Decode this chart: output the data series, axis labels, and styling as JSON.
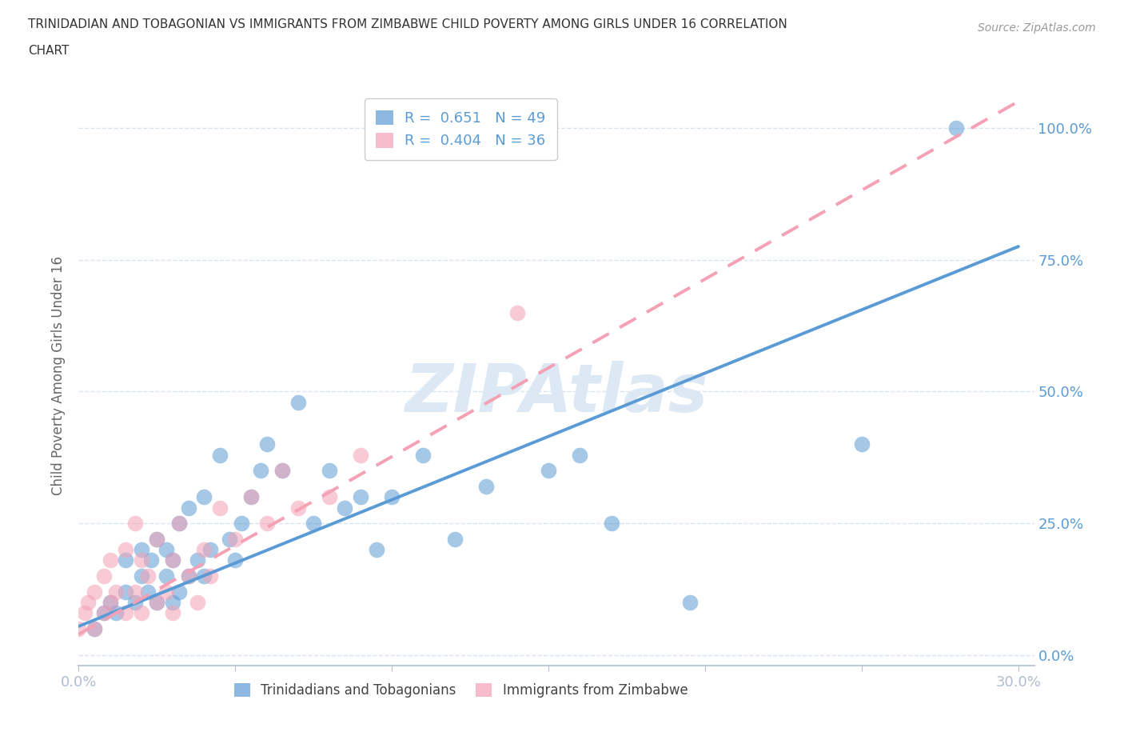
{
  "title_line1": "TRINIDADIAN AND TOBAGONIAN VS IMMIGRANTS FROM ZIMBABWE CHILD POVERTY AMONG GIRLS UNDER 16 CORRELATION",
  "title_line2": "CHART",
  "source": "Source: ZipAtlas.com",
  "ylabel": "Child Poverty Among Girls Under 16",
  "xlim": [
    0.0,
    0.305
  ],
  "ylim": [
    -0.02,
    1.08
  ],
  "xticks": [
    0.0,
    0.05,
    0.1,
    0.15,
    0.2,
    0.25,
    0.3
  ],
  "xticklabels": [
    "0.0%",
    "",
    "",
    "",
    "",
    "",
    "30.0%"
  ],
  "yticks": [
    0.0,
    0.25,
    0.5,
    0.75,
    1.0
  ],
  "yticklabels_right": [
    "0.0%",
    "25.0%",
    "50.0%",
    "75.0%",
    "100.0%"
  ],
  "group1_color": "#5b9bd5",
  "group2_color": "#f4a0b5",
  "group1_label": "Trinidadians and Tobagonians",
  "group2_label": "Immigrants from Zimbabwe",
  "R1": 0.651,
  "N1": 49,
  "R2": 0.404,
  "N2": 36,
  "background_color": "#ffffff",
  "grid_color": "#d8e4f0",
  "axis_color": "#b0bdd0",
  "tick_label_color": "#5b9bd5",
  "ylabel_color": "#666666",
  "title_color": "#333333",
  "source_color": "#999999",
  "watermark_color": "#dde8f5",
  "group1_x": [
    0.005,
    0.008,
    0.01,
    0.012,
    0.015,
    0.015,
    0.018,
    0.02,
    0.02,
    0.022,
    0.023,
    0.025,
    0.025,
    0.028,
    0.028,
    0.03,
    0.03,
    0.032,
    0.032,
    0.035,
    0.035,
    0.038,
    0.04,
    0.04,
    0.042,
    0.045,
    0.048,
    0.05,
    0.052,
    0.055,
    0.058,
    0.06,
    0.065,
    0.07,
    0.075,
    0.08,
    0.085,
    0.09,
    0.095,
    0.1,
    0.11,
    0.12,
    0.13,
    0.15,
    0.16,
    0.17,
    0.195,
    0.25,
    0.28
  ],
  "group1_y": [
    0.05,
    0.08,
    0.1,
    0.08,
    0.12,
    0.18,
    0.1,
    0.15,
    0.2,
    0.12,
    0.18,
    0.1,
    0.22,
    0.15,
    0.2,
    0.1,
    0.18,
    0.12,
    0.25,
    0.15,
    0.28,
    0.18,
    0.15,
    0.3,
    0.2,
    0.38,
    0.22,
    0.18,
    0.25,
    0.3,
    0.35,
    0.4,
    0.35,
    0.48,
    0.25,
    0.35,
    0.28,
    0.3,
    0.2,
    0.3,
    0.38,
    0.22,
    0.32,
    0.35,
    0.38,
    0.25,
    0.1,
    0.4,
    1.0
  ],
  "group2_x": [
    0.0,
    0.002,
    0.003,
    0.005,
    0.005,
    0.008,
    0.008,
    0.01,
    0.01,
    0.012,
    0.015,
    0.015,
    0.018,
    0.018,
    0.02,
    0.02,
    0.022,
    0.025,
    0.025,
    0.028,
    0.03,
    0.03,
    0.032,
    0.035,
    0.038,
    0.04,
    0.042,
    0.045,
    0.05,
    0.055,
    0.06,
    0.065,
    0.07,
    0.08,
    0.09,
    0.14
  ],
  "group2_y": [
    0.05,
    0.08,
    0.1,
    0.05,
    0.12,
    0.08,
    0.15,
    0.1,
    0.18,
    0.12,
    0.08,
    0.2,
    0.12,
    0.25,
    0.08,
    0.18,
    0.15,
    0.1,
    0.22,
    0.12,
    0.08,
    0.18,
    0.25,
    0.15,
    0.1,
    0.2,
    0.15,
    0.28,
    0.22,
    0.3,
    0.25,
    0.35,
    0.28,
    0.3,
    0.38,
    0.65
  ],
  "line1_x0": 0.0,
  "line1_y0": 0.055,
  "line1_x1": 0.3,
  "line1_y1": 0.775,
  "line2_x0": 0.0,
  "line2_y0": 0.04,
  "line2_x1": 0.3,
  "line2_y1": 1.05
}
